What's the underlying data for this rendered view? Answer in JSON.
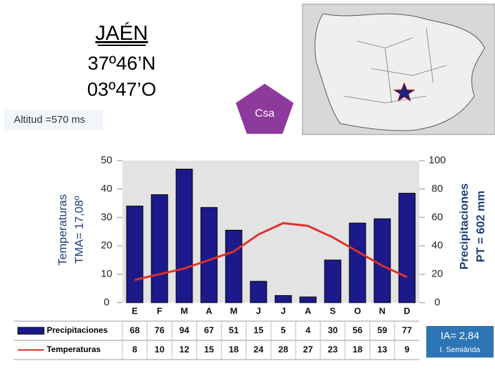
{
  "header": {
    "title": "JAÉN",
    "latitude": "37º46’N",
    "longitude": "03º47’O",
    "altitude": "Altitud =570 ms",
    "climate": "Csa"
  },
  "index": {
    "value": "IA= 2,84",
    "label": "I. Semiárida"
  },
  "chart_data": {
    "type": "bar",
    "y_label": [
      "Temperaturas",
      "TMA= 17,08º"
    ],
    "y2_label": [
      "Precipitaciones",
      "PT = 602 mm"
    ],
    "categories": [
      "E",
      "F",
      "M",
      "A",
      "M",
      "J",
      "J",
      "A",
      "S",
      "O",
      "N",
      "D"
    ],
    "series": [
      {
        "name": "Precipitaciones",
        "type": "bar",
        "axis": "y2",
        "color": "#1c1a8a",
        "values": [
          68,
          76,
          94,
          67,
          51,
          15,
          5,
          4,
          30,
          56,
          59,
          77
        ]
      },
      {
        "name": "Temperaturas",
        "type": "line",
        "color": "#e0302a",
        "values": [
          8,
          10,
          12,
          15,
          18,
          24,
          28,
          27,
          23,
          18,
          13,
          9
        ]
      }
    ],
    "ylim": [
      0,
      50
    ],
    "yticks": [
      0,
      10,
      20,
      30,
      40,
      50
    ],
    "y2lim": [
      0,
      100
    ],
    "y2ticks": [
      0,
      20,
      40,
      60,
      80,
      100
    ]
  }
}
